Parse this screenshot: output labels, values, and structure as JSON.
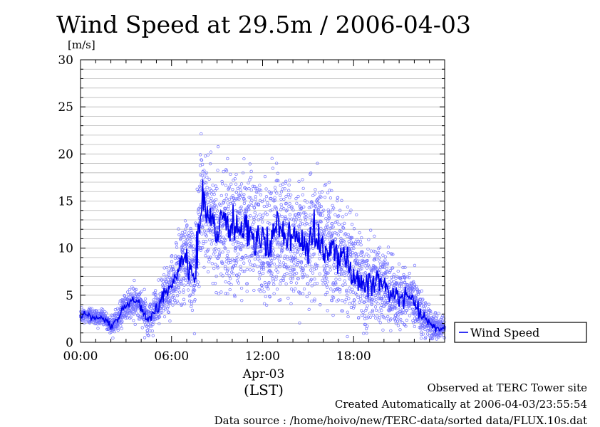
{
  "chart_data": {
    "type": "scatter",
    "title": "Wind Speed at 29.5m / 2006-04-03",
    "ylabel": "[m/s]",
    "ylim": [
      0,
      30
    ],
    "yticks": [
      0,
      5,
      10,
      15,
      20,
      25,
      30
    ],
    "xlim_hours": [
      0,
      24
    ],
    "xticks": [
      {
        "hour": 0,
        "label": "00:00"
      },
      {
        "hour": 6,
        "label": "06:00"
      },
      {
        "hour": 12,
        "label": "12:00"
      },
      {
        "hour": 18,
        "label": "18:00"
      }
    ],
    "xsublabel_date": "Apr-03",
    "xsublabel_tz": "(LST)",
    "grid": true,
    "legend": {
      "position": "right",
      "label": "Wind Speed"
    },
    "series": [
      {
        "name": "Wind Speed",
        "color": "#0000ee",
        "scatter_color": "#6f6fff",
        "mean_line": {
          "hours": [
            0,
            0.5,
            1,
            1.5,
            2,
            2.5,
            3,
            3.5,
            4,
            4.5,
            5,
            5.5,
            6,
            6.5,
            7,
            7.5,
            8,
            8.5,
            9,
            9.5,
            10,
            10.5,
            11,
            11.5,
            12,
            12.5,
            13,
            13.5,
            14,
            14.5,
            15,
            15.5,
            16,
            16.5,
            17,
            17.5,
            18,
            18.5,
            19,
            19.5,
            20,
            20.5,
            21,
            21.5,
            22,
            22.5,
            23,
            23.5,
            24
          ],
          "values": [
            2.8,
            3.0,
            2.5,
            2.6,
            1.8,
            2.5,
            4.0,
            4.5,
            3.8,
            2.5,
            3.5,
            5.0,
            6.0,
            8.0,
            9.0,
            7.0,
            15.0,
            14.0,
            12.0,
            13.0,
            12.0,
            11.5,
            12.5,
            11.0,
            10.5,
            10.5,
            12.0,
            11.0,
            10.5,
            11.0,
            10.0,
            12.0,
            10.0,
            10.0,
            9.5,
            8.5,
            7.5,
            6.5,
            6.0,
            6.5,
            6.5,
            5.0,
            4.5,
            5.0,
            4.5,
            3.0,
            2.0,
            1.5,
            1.5
          ]
        },
        "scatter_spread": {
          "hours": [
            0,
            2,
            3,
            5,
            6,
            7,
            8,
            9,
            10,
            11,
            12,
            14,
            16,
            18,
            20,
            22,
            24
          ],
          "values": [
            0.5,
            0.6,
            1.2,
            1.4,
            2.0,
            2.8,
            4.5,
            4.5,
            4.5,
            4.5,
            4.5,
            4.2,
            4.0,
            3.5,
            2.6,
            1.8,
            0.8
          ]
        }
      }
    ],
    "footer": [
      "Observed at TERC Tower site",
      "Created Automatically at 2006-04-03/23:55:54",
      "Data source : /home/hoivo/new/TERC-data/sorted  data/FLUX.10s.dat"
    ]
  }
}
